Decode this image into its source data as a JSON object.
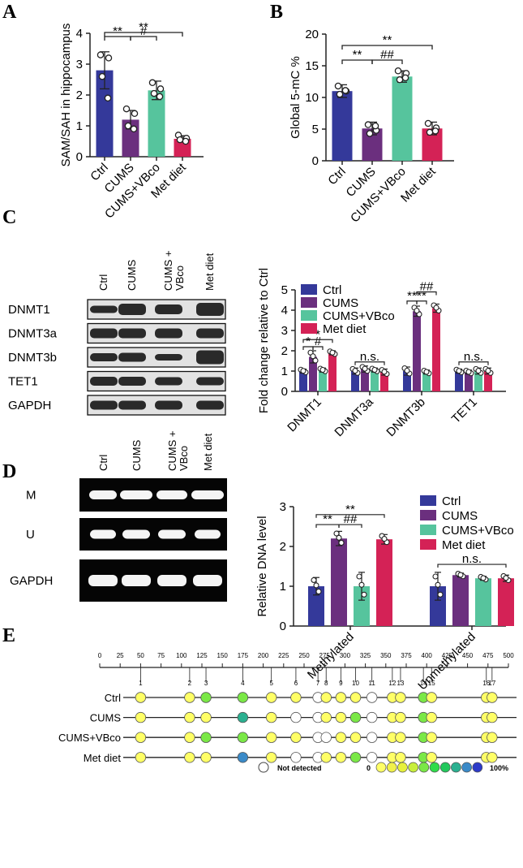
{
  "colors": {
    "ctrl": "#34399a",
    "cums": "#6b2f7e",
    "vbco": "#56c49d",
    "met": "#d42256"
  },
  "panels": {
    "A": "A",
    "B": "B",
    "C": "C",
    "D": "D",
    "E": "E"
  },
  "chart_data": [
    {
      "id": "A",
      "type": "bar",
      "ylabel": "SAM/SAH in hippocampus",
      "ylim": [
        0,
        4
      ],
      "yticks": [
        "0",
        "1",
        "2",
        "3",
        "4"
      ],
      "categories": [
        "Ctrl",
        "CUMS",
        "CUMS+VBco",
        "Met diet"
      ],
      "values": [
        2.8,
        1.2,
        2.15,
        0.58
      ],
      "errors": [
        0.6,
        0.3,
        0.3,
        0.1
      ],
      "points": [
        [
          3.3,
          3.2,
          2.6,
          1.9
        ],
        [
          1.55,
          1.4,
          1.0,
          0.9
        ],
        [
          2.4,
          2.2,
          2.05,
          1.95
        ],
        [
          0.7,
          0.6,
          0.55,
          0.5
        ]
      ],
      "significance": [
        {
          "from": 0,
          "to": 1,
          "label": "**"
        },
        {
          "from": 1,
          "to": 2,
          "label": "#"
        },
        {
          "from": 0,
          "to": 3,
          "label": "**"
        }
      ]
    },
    {
      "id": "B",
      "type": "bar",
      "ylabel": "Global 5-mC %",
      "ylim": [
        0,
        20
      ],
      "yticks": [
        "0",
        "5",
        "10",
        "15",
        "20"
      ],
      "categories": [
        "Ctrl",
        "CUMS",
        "CUMS+VBco",
        "Met diet"
      ],
      "values": [
        11,
        5.1,
        13.3,
        5.1
      ],
      "errors": [
        1.0,
        1.0,
        0.9,
        1.0
      ],
      "points": [
        [
          11.8,
          11.0,
          10.5,
          11.1
        ],
        [
          5.7,
          4.8,
          4.3,
          5.5
        ],
        [
          14.2,
          13.8,
          12.8,
          13.1
        ],
        [
          5.9,
          5.2,
          4.5,
          4.7
        ]
      ],
      "significance": [
        {
          "from": 0,
          "to": 1,
          "label": "**"
        },
        {
          "from": 1,
          "to": 2,
          "label": "##"
        },
        {
          "from": 0,
          "to": 3,
          "label": "**"
        }
      ]
    },
    {
      "id": "C",
      "type": "bar",
      "ylabel": "Fold change relative to Ctrl",
      "ylim": [
        0,
        5
      ],
      "yticks": [
        "0",
        "1",
        "2",
        "3",
        "4",
        "5"
      ],
      "categories": [
        "DNMT1",
        "DNMT3a",
        "DNMT3b",
        "TET1"
      ],
      "series": [
        {
          "name": "Ctrl",
          "values": [
            1.0,
            1.0,
            1.0,
            1.0
          ]
        },
        {
          "name": "CUMS",
          "values": [
            1.7,
            1.1,
            3.95,
            0.95
          ]
        },
        {
          "name": "CUMS+VBco",
          "values": [
            1.05,
            1.05,
            0.95,
            1.0
          ]
        },
        {
          "name": "Met diet",
          "values": [
            1.9,
            0.95,
            4.1,
            1.0
          ]
        }
      ],
      "errors": [
        [
          0.1,
          0.15,
          0.2,
          0.1
        ],
        [
          0.3,
          0.15,
          0.25,
          0.1
        ],
        [
          0.1,
          0.1,
          0.1,
          0.15
        ],
        [
          0.1,
          0.15,
          0.2,
          0.15
        ]
      ],
      "significance": [
        {
          "cat": 0,
          "from": 0,
          "to": 1,
          "label": "*",
          "level": 2.2
        },
        {
          "cat": 0,
          "from": 1,
          "to": 2,
          "label": "#",
          "level": 2.2
        },
        {
          "cat": 0,
          "from": 0,
          "to": 3,
          "label": "*",
          "level": 2.55
        },
        {
          "cat": 1,
          "from": 0,
          "to": 3,
          "label": "n.s.",
          "level": 1.45
        },
        {
          "cat": 2,
          "from": 0,
          "to": 1,
          "label": "**",
          "level": 4.45
        },
        {
          "cat": 2,
          "from": 1,
          "to": 2,
          "label": "**",
          "level": 4.45
        },
        {
          "cat": 2,
          "from": 1,
          "to": 3,
          "label": "##",
          "level": 4.9
        },
        {
          "cat": 3,
          "from": 0,
          "to": 3,
          "label": "n.s.",
          "level": 1.45
        }
      ],
      "legend": "top-left"
    },
    {
      "id": "D",
      "type": "bar",
      "ylabel": "Relative DNA level",
      "ylim": [
        0,
        3
      ],
      "yticks": [
        "0",
        "1",
        "2",
        "3"
      ],
      "categories": [
        "Methylated",
        "Unmethylated"
      ],
      "series": [
        {
          "name": "Ctrl",
          "values": [
            1.0,
            1.0
          ]
        },
        {
          "name": "CUMS",
          "values": [
            2.2,
            1.28
          ]
        },
        {
          "name": "CUMS+VBco",
          "values": [
            1.0,
            1.2
          ]
        },
        {
          "name": "Met diet",
          "values": [
            2.18,
            1.2
          ]
        }
      ],
      "errors": [
        [
          0.22,
          0.35
        ],
        [
          0.18,
          0.05
        ],
        [
          0.35,
          0.05
        ],
        [
          0.12,
          0.08
        ]
      ],
      "significance": [
        {
          "cat": 0,
          "from": 0,
          "to": 1,
          "label": "**",
          "level": 2.55
        },
        {
          "cat": 0,
          "from": 1,
          "to": 2,
          "label": "##",
          "level": 2.55
        },
        {
          "cat": 0,
          "from": 0,
          "to": 3,
          "label": "**",
          "level": 2.8
        },
        {
          "cat": 1,
          "from": 0,
          "to": 3,
          "label": "n.s.",
          "level": 1.55
        }
      ],
      "legend": "top-right"
    },
    {
      "id": "E",
      "type": "table",
      "title": "",
      "scale_ticks": [
        "0",
        "25",
        "50",
        "75",
        "100",
        "125",
        "150",
        "175",
        "200",
        "225",
        "250",
        "275",
        "300",
        "325",
        "350",
        "375",
        "400",
        "425",
        "450",
        "475",
        "500"
      ],
      "site_labels": [
        "1",
        "2",
        "3",
        "4",
        "5",
        "6",
        "7",
        "8",
        "9",
        "10",
        "11",
        "12",
        "13",
        "14",
        "15",
        "16",
        "17"
      ],
      "site_positions": [
        50,
        110,
        130,
        175,
        210,
        240,
        267,
        277,
        295,
        313,
        333,
        358,
        368,
        396,
        406,
        473,
        480
      ],
      "rows": [
        {
          "name": "Ctrl",
          "levels": [
            1,
            1,
            5,
            5,
            1,
            1,
            0,
            1,
            1,
            1,
            0,
            1,
            1,
            5,
            1,
            1,
            1
          ]
        },
        {
          "name": "CUMS",
          "levels": [
            1,
            1,
            1,
            8,
            1,
            0,
            0,
            1,
            1,
            5,
            0,
            1,
            1,
            5,
            1,
            1,
            1
          ]
        },
        {
          "name": "CUMS+VBco",
          "levels": [
            1,
            1,
            5,
            5,
            1,
            1,
            0,
            0,
            1,
            1,
            0,
            1,
            1,
            5,
            1,
            1,
            1
          ]
        },
        {
          "name": "Met diet",
          "levels": [
            1,
            1,
            1,
            9,
            1,
            0,
            0,
            1,
            1,
            5,
            0,
            1,
            1,
            5,
            1,
            1,
            1
          ]
        }
      ],
      "legend_not_detected": "Not detected",
      "legend_zero": "0",
      "legend_hundred": "100%",
      "scale_colors": [
        "#ffff66",
        "#f0f04a",
        "#e6f03c",
        "#c8ee3c",
        "#7ae846",
        "#2fdc4a",
        "#22c85c",
        "#2ab090",
        "#3a8ac8",
        "#2c3ac8"
      ]
    }
  ],
  "blots_C": {
    "lanes": [
      "Ctrl",
      "CUMS",
      "CUMS +\nVBco",
      "Met diet"
    ],
    "rows": [
      "DNMT1",
      "DNMT3a",
      "DNMT3b",
      "TET1",
      "GAPDH"
    ]
  },
  "gels_D": {
    "lanes": [
      "Ctrl",
      "CUMS",
      "CUMS +\nVBco",
      "Met diet"
    ],
    "rows": [
      "M",
      "U",
      "GAPDH"
    ]
  }
}
